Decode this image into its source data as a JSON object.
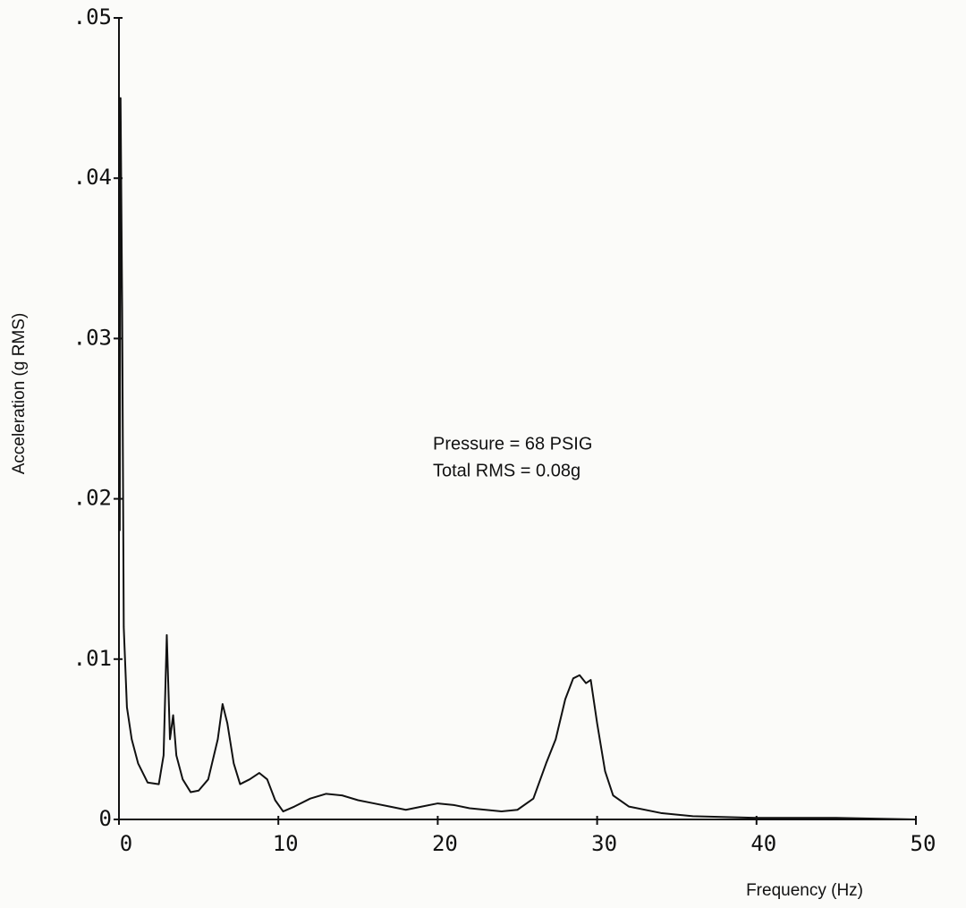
{
  "chart_data": {
    "type": "line",
    "xlabel": "Frequency (Hz)",
    "ylabel": "Acceleration (g RMS)",
    "annotations": [
      "Pressure = 68 PSIG",
      "Total RMS = 0.08g"
    ],
    "xlim": [
      0,
      50
    ],
    "ylim": [
      0,
      0.05
    ],
    "xticks": [
      0,
      10,
      20,
      30,
      40,
      50
    ],
    "yticks": [
      0,
      {
        "value": 0.01,
        "label": ".01"
      },
      {
        "value": 0.02,
        "label": ".02"
      },
      {
        "value": 0.03,
        "label": ".03"
      },
      {
        "value": 0.04,
        "label": ".04"
      },
      {
        "value": 0.05,
        "label": ".05"
      }
    ],
    "grid": false,
    "color": "#111111",
    "x": [
      0.05,
      0.1,
      0.2,
      0.3,
      0.5,
      0.8,
      1.2,
      1.8,
      2.5,
      2.8,
      3.0,
      3.2,
      3.4,
      3.6,
      4.0,
      4.5,
      5.0,
      5.6,
      6.2,
      6.5,
      6.8,
      7.2,
      7.6,
      8.2,
      8.8,
      9.3,
      9.8,
      10.3,
      11.0,
      12.0,
      13.0,
      14.0,
      15.0,
      16.0,
      17.0,
      18.0,
      19.0,
      20.0,
      21.0,
      22.0,
      23.0,
      24.0,
      25.0,
      26.0,
      26.8,
      27.4,
      28.0,
      28.5,
      28.9,
      29.3,
      29.6,
      30.0,
      30.5,
      31.0,
      32.0,
      34.0,
      36.0,
      40.0,
      45.0,
      50.0
    ],
    "values": [
      0.018,
      0.045,
      0.032,
      0.012,
      0.007,
      0.005,
      0.0035,
      0.0023,
      0.0022,
      0.004,
      0.0115,
      0.005,
      0.0065,
      0.004,
      0.0025,
      0.0017,
      0.0018,
      0.0025,
      0.005,
      0.0072,
      0.006,
      0.0035,
      0.0022,
      0.0025,
      0.0029,
      0.0025,
      0.0012,
      0.0005,
      0.0008,
      0.0013,
      0.0016,
      0.0015,
      0.0012,
      0.001,
      0.0008,
      0.0006,
      0.0008,
      0.001,
      0.0009,
      0.0007,
      0.0006,
      0.0005,
      0.0006,
      0.0013,
      0.0035,
      0.005,
      0.0075,
      0.0088,
      0.009,
      0.0085,
      0.0087,
      0.006,
      0.003,
      0.0015,
      0.0008,
      0.0004,
      0.0002,
      0.0001,
      0.0001,
      0.0
    ]
  }
}
